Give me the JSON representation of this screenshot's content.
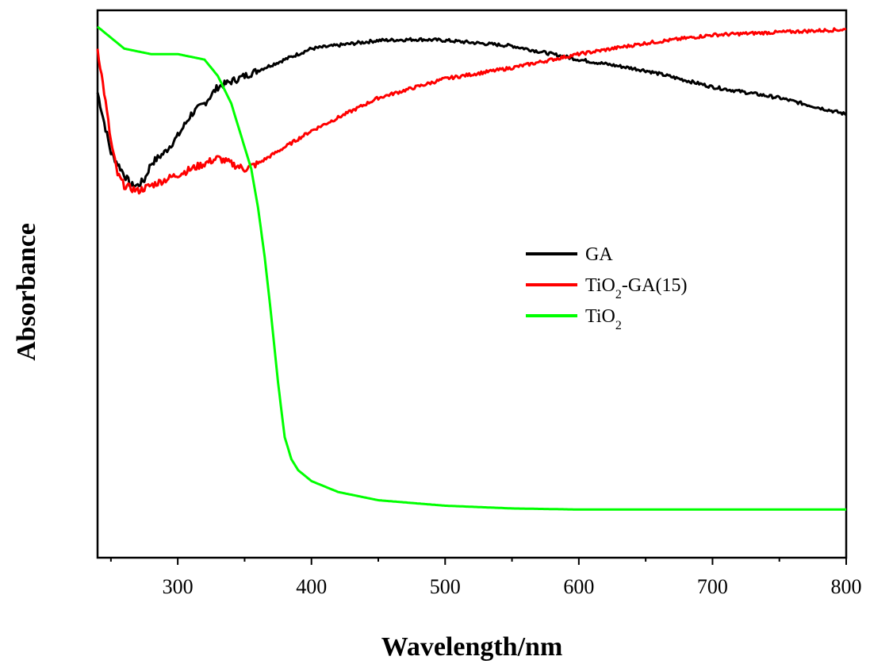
{
  "chart_data": {
    "type": "line",
    "xlabel": "Wavelength/nm",
    "ylabel": "Absorbance",
    "xlim": [
      240,
      800
    ],
    "ylim": [
      0,
      1
    ],
    "xticks": [
      300,
      400,
      500,
      600,
      700,
      800
    ],
    "xticklabels": [
      "300",
      "400",
      "500",
      "600",
      "700",
      "800"
    ],
    "xminor_step": 50,
    "yticks_shown": false,
    "grid": false,
    "legend_position": "center-right",
    "series": [
      {
        "name": "GA",
        "legend_html": "GA",
        "color": "#000000",
        "points": [
          [
            240,
            0.85
          ],
          [
            250,
            0.74
          ],
          [
            260,
            0.7
          ],
          [
            265,
            0.68
          ],
          [
            270,
            0.68
          ],
          [
            275,
            0.69
          ],
          [
            280,
            0.72
          ],
          [
            290,
            0.74
          ],
          [
            300,
            0.77
          ],
          [
            310,
            0.81
          ],
          [
            320,
            0.83
          ],
          [
            330,
            0.86
          ],
          [
            340,
            0.87
          ],
          [
            350,
            0.88
          ],
          [
            370,
            0.9
          ],
          [
            400,
            0.93
          ],
          [
            450,
            0.945
          ],
          [
            480,
            0.947
          ],
          [
            500,
            0.945
          ],
          [
            550,
            0.935
          ],
          [
            580,
            0.92
          ],
          [
            600,
            0.91
          ],
          [
            650,
            0.89
          ],
          [
            700,
            0.86
          ],
          [
            750,
            0.84
          ],
          [
            800,
            0.81
          ]
        ]
      },
      {
        "name": "TiO2-GA(15)",
        "legend_html": "TiO<tspan baseline-shift='sub' font-size='16'>2</tspan>-GA(15)",
        "color": "#ff0000",
        "points": [
          [
            240,
            0.93
          ],
          [
            245,
            0.85
          ],
          [
            250,
            0.76
          ],
          [
            255,
            0.7
          ],
          [
            260,
            0.68
          ],
          [
            270,
            0.67
          ],
          [
            280,
            0.68
          ],
          [
            290,
            0.69
          ],
          [
            300,
            0.7
          ],
          [
            310,
            0.71
          ],
          [
            320,
            0.72
          ],
          [
            330,
            0.73
          ],
          [
            340,
            0.72
          ],
          [
            350,
            0.71
          ],
          [
            360,
            0.72
          ],
          [
            380,
            0.75
          ],
          [
            400,
            0.78
          ],
          [
            450,
            0.84
          ],
          [
            500,
            0.875
          ],
          [
            550,
            0.895
          ],
          [
            580,
            0.91
          ],
          [
            600,
            0.92
          ],
          [
            650,
            0.94
          ],
          [
            700,
            0.955
          ],
          [
            750,
            0.96
          ],
          [
            800,
            0.965
          ]
        ]
      },
      {
        "name": "TiO2",
        "legend_html": "TiO<tspan baseline-shift='sub' font-size='16'>2</tspan>",
        "color": "#00ff00",
        "points": [
          [
            240,
            0.97
          ],
          [
            250,
            0.95
          ],
          [
            260,
            0.93
          ],
          [
            280,
            0.92
          ],
          [
            300,
            0.92
          ],
          [
            310,
            0.915
          ],
          [
            320,
            0.91
          ],
          [
            330,
            0.88
          ],
          [
            340,
            0.83
          ],
          [
            350,
            0.75
          ],
          [
            355,
            0.71
          ],
          [
            360,
            0.64
          ],
          [
            365,
            0.55
          ],
          [
            370,
            0.44
          ],
          [
            375,
            0.32
          ],
          [
            380,
            0.22
          ],
          [
            385,
            0.18
          ],
          [
            390,
            0.16
          ],
          [
            400,
            0.14
          ],
          [
            420,
            0.12
          ],
          [
            450,
            0.105
          ],
          [
            500,
            0.095
          ],
          [
            550,
            0.09
          ],
          [
            600,
            0.088
          ],
          [
            700,
            0.088
          ],
          [
            800,
            0.088
          ]
        ]
      }
    ]
  }
}
